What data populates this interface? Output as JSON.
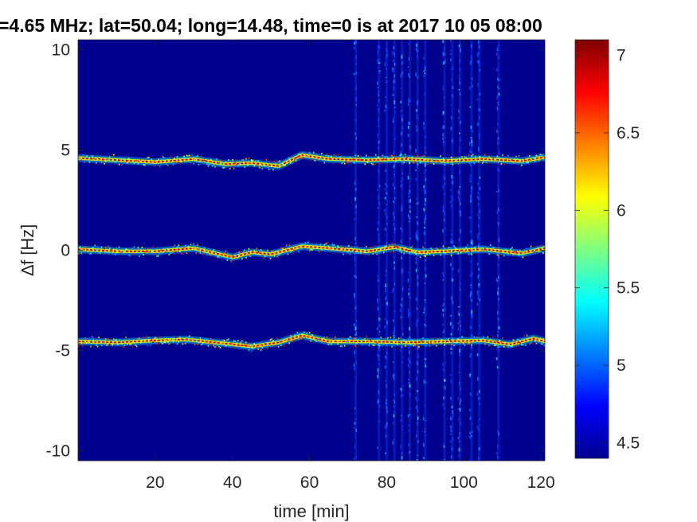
{
  "chart_data": {
    "type": "heatmap",
    "title": "=4.65 MHz;  lat=50.04; long=14.48, time=0 is at 2017 10 05 08:00",
    "xlabel": "time [min]",
    "ylabel": "∆f [Hz]",
    "xlim": [
      0,
      121
    ],
    "ylim": [
      -10.5,
      10.5
    ],
    "x_ticks": [
      20,
      40,
      60,
      80,
      100,
      120
    ],
    "y_ticks": [
      10,
      5,
      0,
      -5,
      -10
    ],
    "grid": false,
    "colormap": "jet",
    "colorbar": {
      "range": [
        4.4,
        7.1
      ],
      "ticks": [
        7,
        6.5,
        6,
        5.5,
        5,
        4.5
      ]
    },
    "background_level": 4.45,
    "traces": [
      {
        "center_hz": 4.55,
        "points": [
          [
            0,
            4.6
          ],
          [
            10,
            4.5
          ],
          [
            20,
            4.4
          ],
          [
            30,
            4.55
          ],
          [
            38,
            4.3
          ],
          [
            45,
            4.35
          ],
          [
            52,
            4.2
          ],
          [
            58,
            4.75
          ],
          [
            65,
            4.55
          ],
          [
            75,
            4.5
          ],
          [
            85,
            4.55
          ],
          [
            95,
            4.45
          ],
          [
            105,
            4.55
          ],
          [
            115,
            4.45
          ],
          [
            121,
            4.65
          ]
        ],
        "peak_level": 7.0
      },
      {
        "center_hz": 0.0,
        "points": [
          [
            0,
            0.05
          ],
          [
            10,
            -0.05
          ],
          [
            20,
            -0.05
          ],
          [
            30,
            0.1
          ],
          [
            40,
            -0.35
          ],
          [
            45,
            -0.1
          ],
          [
            50,
            -0.2
          ],
          [
            58,
            0.2
          ],
          [
            65,
            0.1
          ],
          [
            75,
            -0.05
          ],
          [
            82,
            0.15
          ],
          [
            88,
            -0.1
          ],
          [
            95,
            -0.05
          ],
          [
            105,
            0.05
          ],
          [
            115,
            -0.15
          ],
          [
            121,
            0.1
          ]
        ],
        "peak_level": 7.0
      },
      {
        "center_hz": -4.6,
        "points": [
          [
            0,
            -4.55
          ],
          [
            10,
            -4.6
          ],
          [
            20,
            -4.5
          ],
          [
            28,
            -4.45
          ],
          [
            38,
            -4.65
          ],
          [
            45,
            -4.8
          ],
          [
            52,
            -4.6
          ],
          [
            58,
            -4.25
          ],
          [
            65,
            -4.55
          ],
          [
            75,
            -4.55
          ],
          [
            85,
            -4.6
          ],
          [
            95,
            -4.55
          ],
          [
            105,
            -4.5
          ],
          [
            112,
            -4.7
          ],
          [
            118,
            -4.4
          ],
          [
            121,
            -4.55
          ]
        ],
        "peak_level": 7.0
      }
    ],
    "interference_bands_min": [
      72,
      78,
      80,
      82,
      84,
      86,
      88,
      90,
      95,
      97,
      99,
      102,
      104,
      109
    ]
  }
}
